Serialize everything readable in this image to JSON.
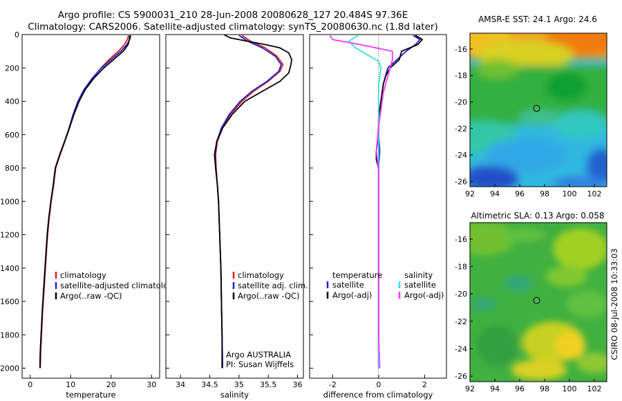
{
  "title_line1": "Argo profile: CS 5900031_210 28-Jun-2008 20080628_127 20.484S 97.36E",
  "title_line2": "Climatology: CARS2006. Satellite-adjusted climatology: synTS_20080630.nc (1.8d later)",
  "credit": "CSIRO 08-Jul-2008 10:33:03",
  "colors": {
    "climatology": "#e41a1c",
    "satellite_adj": "#1f1fd0",
    "argo": "#000000",
    "temp_satellite": "#1f1fd0",
    "temp_argo": "#000000",
    "sal_satellite": "#33e0e0",
    "sal_argo": "#ff33ff",
    "marker": "#4caf50"
  },
  "chart_data": [
    {
      "type": "line",
      "id": "temperature",
      "xlabel": "temperature",
      "ylabel": "",
      "xlim": [
        -2,
        32
      ],
      "ylim": [
        2060,
        0
      ],
      "xticks": [
        0,
        10,
        20,
        30
      ],
      "yticks": [
        0,
        200,
        400,
        600,
        800,
        1000,
        1200,
        1400,
        1600,
        1800,
        2000
      ],
      "legend": [
        "climatology",
        "satellite-adjusted climatology",
        "Argo(..raw -QC)"
      ],
      "legend_position": "lower-right",
      "series": [
        {
          "name": "climatology",
          "color_key": "climatology",
          "points": [
            [
              24.3,
              5
            ],
            [
              24.0,
              30
            ],
            [
              23.3,
              60
            ],
            [
              21.8,
              100
            ],
            [
              19.5,
              150
            ],
            [
              17.5,
              200
            ],
            [
              15.5,
              260
            ],
            [
              13.5,
              330
            ],
            [
              12.0,
              400
            ],
            [
              10.7,
              480
            ],
            [
              9.7,
              560
            ],
            [
              8.6,
              640
            ],
            [
              7.4,
              720
            ],
            [
              6.3,
              800
            ],
            [
              5.8,
              900
            ],
            [
              5.2,
              1000
            ],
            [
              4.7,
              1100
            ],
            [
              4.3,
              1200
            ],
            [
              3.9,
              1350
            ],
            [
              3.5,
              1500
            ],
            [
              3.1,
              1650
            ],
            [
              2.8,
              1800
            ],
            [
              2.6,
              1900
            ],
            [
              2.5,
              2000
            ]
          ]
        },
        {
          "name": "satellite-adjusted climatology",
          "color_key": "satellite_adj",
          "points": [
            [
              24.9,
              5
            ],
            [
              24.6,
              30
            ],
            [
              23.9,
              60
            ],
            [
              22.4,
              100
            ],
            [
              20.0,
              150
            ],
            [
              17.6,
              200
            ],
            [
              15.4,
              260
            ],
            [
              13.3,
              330
            ],
            [
              11.8,
              400
            ],
            [
              10.6,
              480
            ],
            [
              9.6,
              560
            ],
            [
              8.5,
              640
            ],
            [
              7.3,
              720
            ],
            [
              6.2,
              800
            ],
            [
              5.7,
              900
            ],
            [
              5.1,
              1000
            ],
            [
              4.6,
              1100
            ],
            [
              4.2,
              1200
            ],
            [
              3.8,
              1350
            ],
            [
              3.4,
              1500
            ],
            [
              3.0,
              1650
            ],
            [
              2.7,
              1800
            ],
            [
              2.5,
              1900
            ],
            [
              2.4,
              2000
            ]
          ]
        },
        {
          "name": "Argo(..raw -QC)",
          "color_key": "argo",
          "points": [
            [
              24.6,
              5
            ],
            [
              24.5,
              30
            ],
            [
              24.2,
              60
            ],
            [
              23.0,
              100
            ],
            [
              20.6,
              150
            ],
            [
              18.2,
              200
            ],
            [
              15.8,
              260
            ],
            [
              13.6,
              330
            ],
            [
              12.1,
              400
            ],
            [
              10.8,
              480
            ],
            [
              9.7,
              560
            ],
            [
              8.5,
              640
            ],
            [
              7.3,
              720
            ],
            [
              6.2,
              800
            ],
            [
              5.7,
              900
            ],
            [
              5.1,
              1000
            ],
            [
              4.6,
              1100
            ],
            [
              4.2,
              1200
            ],
            [
              3.8,
              1350
            ],
            [
              3.4,
              1500
            ],
            [
              3.0,
              1650
            ],
            [
              2.7,
              1800
            ],
            [
              2.5,
              1900
            ],
            [
              2.4,
              2000
            ]
          ]
        }
      ]
    },
    {
      "type": "line",
      "id": "salinity",
      "xlabel": "salinity",
      "ylabel": "",
      "xlim": [
        33.75,
        36.1
      ],
      "ylim": [
        2060,
        0
      ],
      "xticks": [
        34,
        34.5,
        35,
        35.5,
        36
      ],
      "yticks": [
        0,
        200,
        400,
        600,
        800,
        1000,
        1200,
        1400,
        1600,
        1800,
        2000
      ],
      "legend": [
        "climatology",
        "satellite adj. clim.",
        "Argo(..raw -QC)"
      ],
      "legend_position": "lower-right",
      "annotation": [
        "Argo AUSTRALIA",
        "PI: Susan Wijffels"
      ],
      "series": [
        {
          "name": "climatology",
          "color_key": "climatology",
          "points": [
            [
              35.05,
              5
            ],
            [
              35.2,
              40
            ],
            [
              35.45,
              80
            ],
            [
              35.65,
              130
            ],
            [
              35.75,
              180
            ],
            [
              35.7,
              220
            ],
            [
              35.5,
              280
            ],
            [
              35.25,
              340
            ],
            [
              35.05,
              400
            ],
            [
              34.85,
              480
            ],
            [
              34.72,
              560
            ],
            [
              34.63,
              640
            ],
            [
              34.6,
              720
            ],
            [
              34.61,
              800
            ],
            [
              34.63,
              900
            ],
            [
              34.65,
              1000
            ],
            [
              34.67,
              1200
            ],
            [
              34.69,
              1400
            ],
            [
              34.7,
              1600
            ],
            [
              34.71,
              1800
            ],
            [
              34.72,
              2000
            ]
          ]
        },
        {
          "name": "satellite adj. clim.",
          "color_key": "satellite_adj",
          "points": [
            [
              35.0,
              5
            ],
            [
              35.15,
              40
            ],
            [
              35.4,
              80
            ],
            [
              35.62,
              130
            ],
            [
              35.72,
              180
            ],
            [
              35.68,
              220
            ],
            [
              35.48,
              280
            ],
            [
              35.22,
              340
            ],
            [
              35.02,
              400
            ],
            [
              34.83,
              480
            ],
            [
              34.7,
              560
            ],
            [
              34.62,
              640
            ],
            [
              34.59,
              720
            ],
            [
              34.6,
              800
            ],
            [
              34.63,
              900
            ],
            [
              34.65,
              1000
            ],
            [
              34.67,
              1200
            ],
            [
              34.69,
              1400
            ],
            [
              34.7,
              1600
            ],
            [
              34.71,
              1800
            ],
            [
              34.72,
              2000
            ]
          ]
        },
        {
          "name": "Argo(..raw -QC)",
          "color_key": "argo",
          "points": [
            [
              34.75,
              2
            ],
            [
              34.85,
              20
            ],
            [
              35.15,
              40
            ],
            [
              35.45,
              60
            ],
            [
              35.7,
              80
            ],
            [
              35.85,
              110
            ],
            [
              35.9,
              150
            ],
            [
              35.88,
              190
            ],
            [
              35.85,
              230
            ],
            [
              35.7,
              280
            ],
            [
              35.4,
              340
            ],
            [
              35.1,
              400
            ],
            [
              34.88,
              480
            ],
            [
              34.72,
              560
            ],
            [
              34.62,
              640
            ],
            [
              34.58,
              720
            ],
            [
              34.6,
              800
            ],
            [
              34.63,
              900
            ],
            [
              34.65,
              1000
            ],
            [
              34.67,
              1200
            ],
            [
              34.69,
              1400
            ],
            [
              34.7,
              1600
            ],
            [
              34.71,
              1800
            ],
            [
              34.71,
              2000
            ]
          ]
        }
      ]
    },
    {
      "type": "line",
      "id": "difference",
      "xlabel": "difference from climatology",
      "ylabel": "",
      "xlim": [
        -3,
        2.95
      ],
      "ylim": [
        2060,
        0
      ],
      "xticks": [
        -2,
        0,
        2
      ],
      "yticks": [
        0,
        200,
        400,
        600,
        800,
        1000,
        1200,
        1400,
        1600,
        1800,
        2000
      ],
      "legend_headers": [
        "temperature",
        "salinity"
      ],
      "legend": [
        "satellite",
        "Argo(-adj)",
        "satellite",
        "Argo(-adj)"
      ],
      "legend_position": "lower-center",
      "series": [
        {
          "name": "temperature satellite",
          "color_key": "temp_satellite",
          "points": [
            [
              1.5,
              5
            ],
            [
              1.8,
              30
            ],
            [
              1.6,
              60
            ],
            [
              1.2,
              100
            ],
            [
              0.8,
              150
            ],
            [
              0.4,
              200
            ],
            [
              0.3,
              250
            ],
            [
              0.2,
              300
            ],
            [
              0.1,
              400
            ],
            [
              0.0,
              500
            ],
            [
              0.0,
              600
            ],
            [
              0.05,
              700
            ],
            [
              0.0,
              800
            ],
            [
              0.0,
              1000
            ],
            [
              0.0,
              1200
            ],
            [
              0.0,
              1400
            ],
            [
              0.0,
              1600
            ],
            [
              0.0,
              1800
            ],
            [
              0.0,
              2000
            ]
          ]
        },
        {
          "name": "temperature Argo(-adj)",
          "color_key": "temp_argo",
          "points": [
            [
              1.6,
              5
            ],
            [
              1.9,
              30
            ],
            [
              1.7,
              60
            ],
            [
              1.0,
              100
            ],
            [
              0.9,
              150
            ],
            [
              0.5,
              200
            ],
            [
              0.3,
              250
            ],
            [
              0.2,
              300
            ],
            [
              0.1,
              400
            ],
            [
              0.0,
              500
            ],
            [
              0.0,
              600
            ],
            [
              -0.1,
              700
            ],
            [
              -0.1,
              750
            ],
            [
              0.0,
              800
            ],
            [
              0.0,
              1000
            ],
            [
              0.0,
              1200
            ],
            [
              0.0,
              1400
            ],
            [
              0.0,
              1600
            ],
            [
              0.0,
              1800
            ],
            [
              0.0,
              2000
            ]
          ]
        },
        {
          "name": "salinity satellite",
          "color_key": "sal_satellite",
          "points": [
            [
              -0.9,
              5
            ],
            [
              -1.3,
              40
            ],
            [
              -1.0,
              80
            ],
            [
              -0.5,
              120
            ],
            [
              0.0,
              160
            ],
            [
              0.1,
              200
            ],
            [
              0.0,
              300
            ],
            [
              0.0,
              400
            ],
            [
              0.0,
              600
            ],
            [
              0.0,
              800
            ],
            [
              0.0,
              1000
            ],
            [
              0.0,
              1200
            ],
            [
              0.0,
              1400
            ],
            [
              0.0,
              1600
            ],
            [
              0.0,
              1800
            ],
            [
              0.0,
              2000
            ]
          ]
        },
        {
          "name": "salinity Argo(-adj)",
          "color_key": "sal_argo",
          "points": [
            [
              -2.1,
              5
            ],
            [
              -2.0,
              30
            ],
            [
              -0.8,
              60
            ],
            [
              0.6,
              100
            ],
            [
              0.6,
              150
            ],
            [
              0.5,
              200
            ],
            [
              0.4,
              250
            ],
            [
              0.2,
              350
            ],
            [
              0.1,
              450
            ],
            [
              0.0,
              550
            ],
            [
              -0.1,
              700
            ],
            [
              0.0,
              800
            ],
            [
              0.0,
              1000
            ],
            [
              0.0,
              1200
            ],
            [
              0.0,
              1400
            ],
            [
              0.0,
              1600
            ],
            [
              0.0,
              1800
            ],
            [
              0.05,
              2000
            ]
          ]
        }
      ]
    },
    {
      "type": "heatmap",
      "id": "sst",
      "title": "AMSR-E SST: 24.1 Argo: 24.6",
      "xlim": [
        92,
        103
      ],
      "ylim": [
        -26.4,
        -14.8
      ],
      "xticks": [
        92,
        94,
        96,
        98,
        100,
        102
      ],
      "yticks": [
        -16,
        -18,
        -20,
        -22,
        -24,
        -26
      ],
      "marker": [
        97.36,
        -20.48
      ]
    },
    {
      "type": "heatmap",
      "id": "sla",
      "title": "Altimetric SLA: 0.13 Argo: 0.058",
      "xlim": [
        92,
        103
      ],
      "ylim": [
        -26.4,
        -14.8
      ],
      "xticks": [
        92,
        94,
        96,
        98,
        100,
        102
      ],
      "yticks": [
        -16,
        -18,
        -20,
        -22,
        -24,
        -26
      ],
      "marker": [
        97.36,
        -20.48
      ]
    }
  ]
}
